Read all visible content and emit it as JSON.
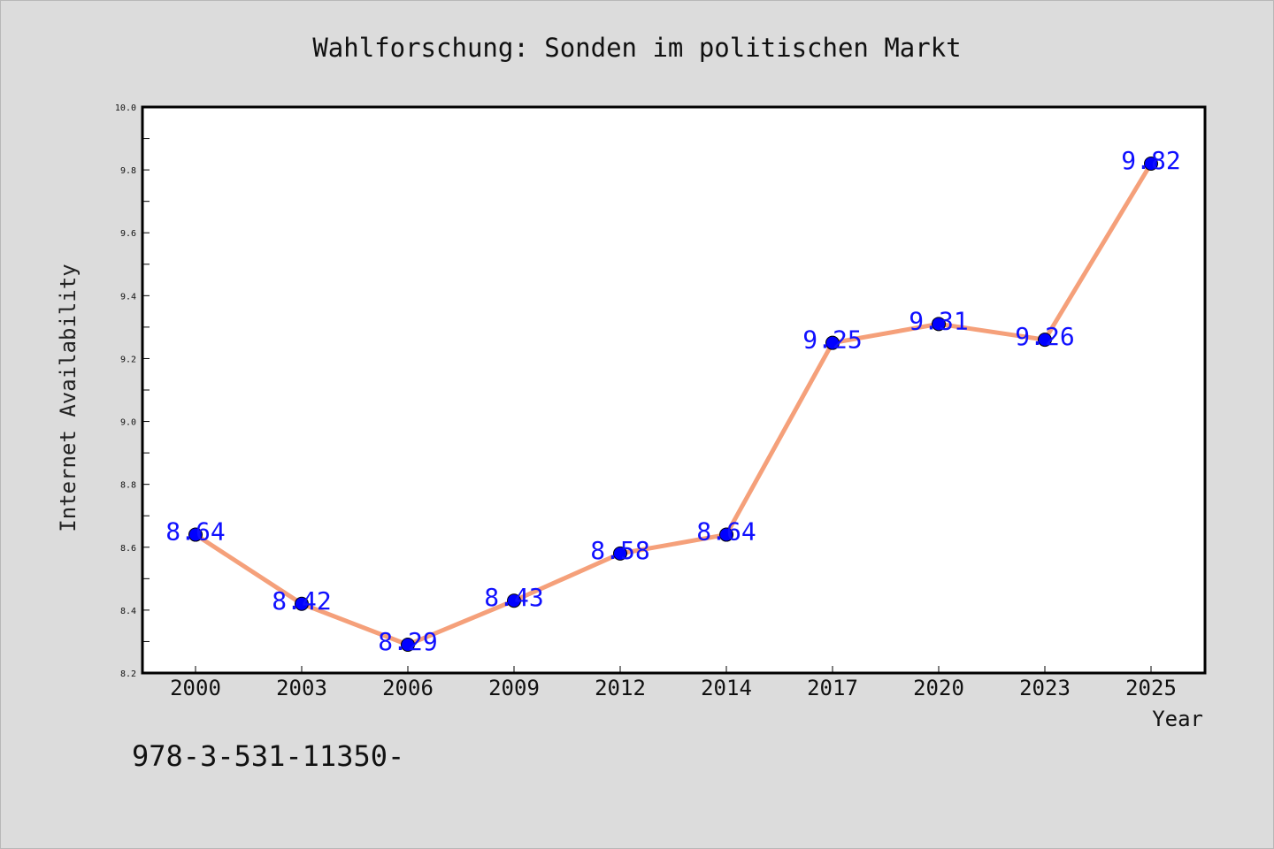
{
  "chart_data": {
    "type": "line",
    "title": "Wahlforschung: Sonden im politischen Markt",
    "xlabel": "Year",
    "ylabel": "Internet Availability",
    "categories": [
      "2000",
      "2003",
      "2006",
      "2009",
      "2012",
      "2014",
      "2017",
      "2020",
      "2023",
      "2025"
    ],
    "values": [
      8.64,
      8.42,
      8.29,
      8.43,
      8.58,
      8.64,
      9.25,
      9.31,
      9.26,
      9.82
    ],
    "data_labels": [
      "8.64",
      "8.42",
      "8.29",
      "8.43",
      "8.58",
      "8.64",
      "9.25",
      "9.31",
      "9.26",
      "9.82"
    ],
    "yticks": [
      "8.2",
      "8.4",
      "8.6",
      "8.8",
      "9.0",
      "9.2",
      "9.4",
      "9.6",
      "9.8",
      "10.0"
    ],
    "ylim": [
      8.2,
      10.0
    ],
    "grid": false,
    "line_color": "#f5a07a",
    "marker_color": "#0000ff",
    "label_color": "#1010ff"
  },
  "footer_text": "978-3-531-11350-"
}
